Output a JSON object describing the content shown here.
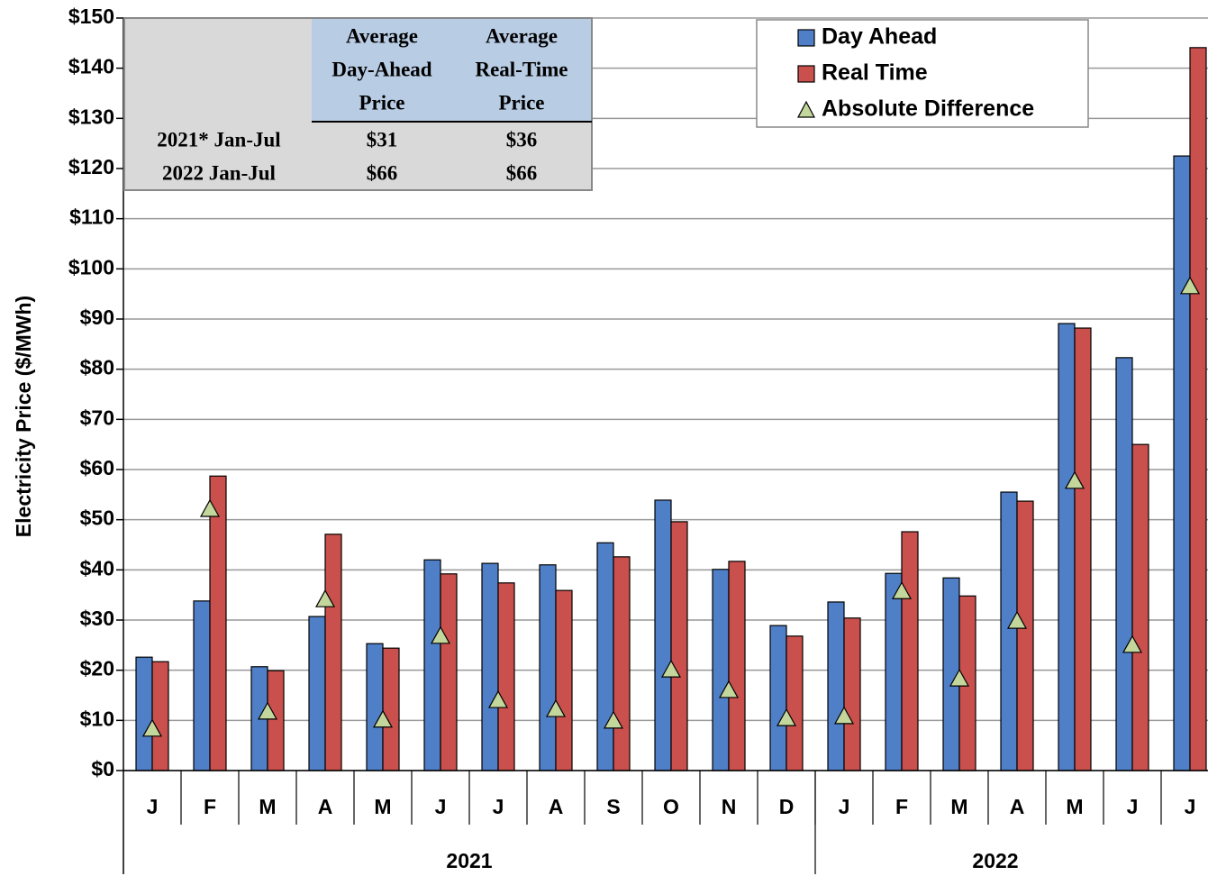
{
  "chart_data": {
    "type": "bar",
    "y_label": "Electricity Price ($/MWh)",
    "categories": [
      "J",
      "F",
      "M",
      "A",
      "M",
      "J",
      "J",
      "A",
      "S",
      "O",
      "N",
      "D",
      "J",
      "F",
      "M",
      "A",
      "M",
      "J",
      "J"
    ],
    "groups": [
      {
        "label": "2021",
        "size": 12
      },
      {
        "label": "2022",
        "size": 7
      }
    ],
    "series": [
      {
        "name": "Day Ahead",
        "color": "#4f7fc7",
        "kind": "bar",
        "values": [
          22.6,
          33.8,
          20.7,
          30.7,
          25.3,
          42.0,
          41.3,
          41.0,
          45.4,
          53.9,
          40.1,
          28.9,
          33.6,
          39.3,
          38.4,
          55.5,
          89.1,
          82.3,
          122.5
        ]
      },
      {
        "name": "Real Time",
        "color": "#c9504c",
        "kind": "bar",
        "values": [
          21.7,
          58.7,
          19.9,
          47.1,
          24.4,
          39.2,
          37.4,
          35.9,
          42.6,
          49.6,
          41.7,
          26.8,
          30.4,
          47.6,
          34.8,
          53.7,
          88.2,
          65.0,
          144.1
        ]
      },
      {
        "name": "Absolute Difference",
        "color": "#c3d69b",
        "kind": "triangle",
        "values": [
          8.3,
          52.1,
          11.7,
          34.1,
          10.1,
          26.8,
          14.0,
          12.2,
          9.9,
          20.1,
          16.0,
          10.4,
          10.8,
          35.7,
          18.3,
          29.8,
          57.7,
          25.0,
          96.5
        ]
      }
    ],
    "ylim": [
      0,
      150
    ],
    "yticks": [
      {
        "value": 0,
        "label": "$0"
      },
      {
        "value": 10,
        "label": "$10"
      },
      {
        "value": 20,
        "label": "$20"
      },
      {
        "value": 30,
        "label": "$30"
      },
      {
        "value": 40,
        "label": "$40"
      },
      {
        "value": 50,
        "label": "$50"
      },
      {
        "value": 60,
        "label": "$60"
      },
      {
        "value": 70,
        "label": "$70"
      },
      {
        "value": 80,
        "label": "$80"
      },
      {
        "value": 90,
        "label": "$90"
      },
      {
        "value": 100,
        "label": "$100"
      },
      {
        "value": 110,
        "label": "$110"
      },
      {
        "value": 120,
        "label": "$120"
      },
      {
        "value": 130,
        "label": "$130"
      },
      {
        "value": 140,
        "label": "$140"
      },
      {
        "value": 150,
        "label": "$150"
      }
    ],
    "grid": true,
    "legend": "top-right",
    "inset_table": {
      "columns": [
        [
          "Average",
          "Day-Ahead",
          "Price"
        ],
        [
          "Average",
          "Real-Time",
          "Price"
        ]
      ],
      "rows": [
        [
          "2021* Jan-Jul",
          "$31",
          "$36"
        ],
        [
          "2022 Jan-Jul",
          "$66",
          "$66"
        ]
      ]
    }
  }
}
